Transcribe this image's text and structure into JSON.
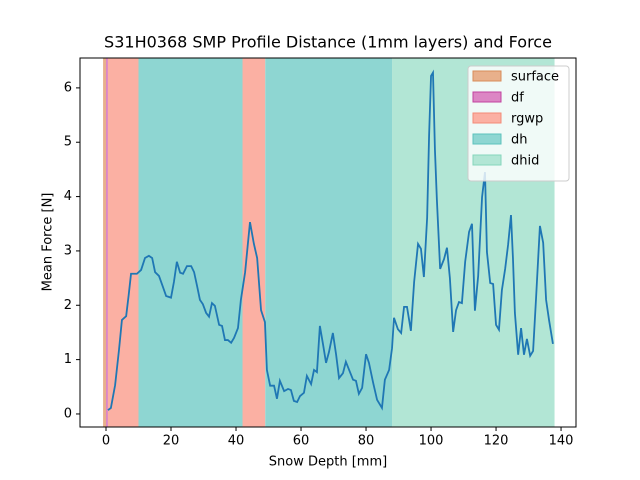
{
  "chart_data": {
    "type": "line",
    "title": "S31H0368 SMP Profile Distance (1mm layers) and Force",
    "xlabel": "Snow Depth [mm]",
    "ylabel": "Mean Force [N]",
    "xlim": [
      -8,
      144.6
    ],
    "ylim": [
      -0.24,
      6.55
    ],
    "xticks": [
      0,
      20,
      40,
      60,
      80,
      100,
      120,
      140
    ],
    "yticks": [
      0,
      1,
      2,
      3,
      4,
      5,
      6
    ],
    "legend_loc": "upper right",
    "spans": [
      {
        "name": "surface",
        "start": -0.9,
        "end": 0.0,
        "color": "#e8b08b",
        "edgecolor": "#d98c5a"
      },
      {
        "name": "df",
        "start": 0.0,
        "end": 0.6,
        "color": "#dc86c4",
        "edgecolor": "#c2439f"
      },
      {
        "name": "rgwp",
        "start": 0.6,
        "end": 10,
        "color": "#fbb0a3",
        "edgecolor": "#f38a77"
      },
      {
        "name": "rgwp",
        "start": 42,
        "end": 49,
        "color": "#fbb0a3",
        "edgecolor": "#f38a77"
      },
      {
        "name": "dh",
        "start": 10,
        "end": 42,
        "color": "#8ed6d2",
        "edgecolor": "#5cc2bc"
      },
      {
        "name": "dh",
        "start": 49,
        "end": 88,
        "color": "#8ed6d2",
        "edgecolor": "#5cc2bc"
      },
      {
        "name": "dhid",
        "start": 88,
        "end": 138,
        "color": "#b2e6d5",
        "edgecolor": "#85d6bc"
      }
    ],
    "x": [
      0.6,
      1.5,
      2.8,
      4,
      4.9,
      6.2,
      7,
      7.7,
      9.5,
      10.8,
      12,
      13.2,
      14.2,
      15.1,
      16.3,
      17.5,
      18.5,
      20,
      20.9,
      21.8,
      22.8,
      23.7,
      24.9,
      26.2,
      27.1,
      28,
      28.9,
      29.8,
      30.8,
      31.7,
      32.6,
      33.5,
      34.8,
      35.7,
      36.6,
      37.5,
      38.5,
      39.4,
      40.6,
      41.5,
      42.8,
      44.3,
      45.5,
      46.5,
      47.7,
      48.9,
      49.5,
      50.5,
      51.7,
      52.6,
      53.5,
      54.8,
      56,
      56.9,
      57.8,
      58.8,
      59.7,
      60.9,
      61.8,
      63.1,
      64,
      64.9,
      65.8,
      66.8,
      67.7,
      68.6,
      69.8,
      70.8,
      71.7,
      72.9,
      73.8,
      74.8,
      76,
      76.9,
      77.8,
      78.8,
      80,
      80.9,
      82.2,
      83.4,
      84.9,
      85.8,
      87.1,
      88,
      88.6,
      89.8,
      90.8,
      91.7,
      92.6,
      93.8,
      94.8,
      96,
      96.9,
      97.8,
      98.8,
      99.4,
      100,
      100.6,
      101.2,
      101.8,
      102.8,
      104,
      104.9,
      105.8,
      106.8,
      107.7,
      108.6,
      109.5,
      110.5,
      111.7,
      112.6,
      113.5,
      114.5,
      115.7,
      116.6,
      117.2,
      118.2,
      119.1,
      120,
      120.9,
      121.8,
      122.8,
      123.7,
      124.6,
      125.2,
      125.8,
      126.8,
      127.7,
      128.6,
      129.5,
      130.5,
      131.4,
      132.3,
      133.5,
      134.5,
      135.4,
      136.3,
      137.5
    ],
    "series": [
      {
        "color": "#1f77b4",
        "values": [
          0.07,
          0.11,
          0.53,
          1.18,
          1.73,
          1.8,
          2.2,
          2.58,
          2.58,
          2.65,
          2.87,
          2.91,
          2.87,
          2.61,
          2.54,
          2.34,
          2.17,
          2.14,
          2.43,
          2.8,
          2.6,
          2.58,
          2.72,
          2.72,
          2.61,
          2.36,
          2.1,
          2.02,
          1.86,
          1.79,
          2.04,
          1.99,
          1.64,
          1.62,
          1.36,
          1.36,
          1.31,
          1.4,
          1.58,
          2.1,
          2.61,
          3.53,
          3.13,
          2.87,
          1.91,
          1.69,
          0.81,
          0.52,
          0.52,
          0.28,
          0.61,
          0.42,
          0.46,
          0.44,
          0.24,
          0.22,
          0.33,
          0.39,
          0.7,
          0.55,
          0.81,
          0.77,
          1.62,
          1.27,
          0.94,
          1.14,
          1.49,
          1.09,
          0.66,
          0.75,
          0.96,
          0.81,
          0.63,
          0.61,
          0.37,
          0.48,
          1.1,
          0.94,
          0.57,
          0.26,
          0.11,
          0.63,
          0.81,
          1.21,
          1.77,
          1.56,
          1.49,
          1.97,
          1.97,
          1.53,
          2.43,
          3.13,
          3.04,
          2.52,
          3.61,
          5.12,
          6.22,
          6.28,
          4.86,
          3.94,
          2.67,
          2.85,
          3.06,
          2.5,
          1.51,
          1.91,
          2.06,
          2.04,
          2.8,
          3.35,
          3.5,
          1.9,
          2.54,
          3.99,
          4.45,
          2.98,
          2.41,
          2.39,
          1.64,
          1.55,
          2.28,
          2.67,
          3.11,
          3.66,
          2.87,
          1.86,
          1.09,
          1.58,
          1.09,
          1.38,
          1.07,
          1.16,
          2.12,
          3.46,
          3.15,
          2.1,
          1.73,
          1.29
        ]
      }
    ]
  }
}
